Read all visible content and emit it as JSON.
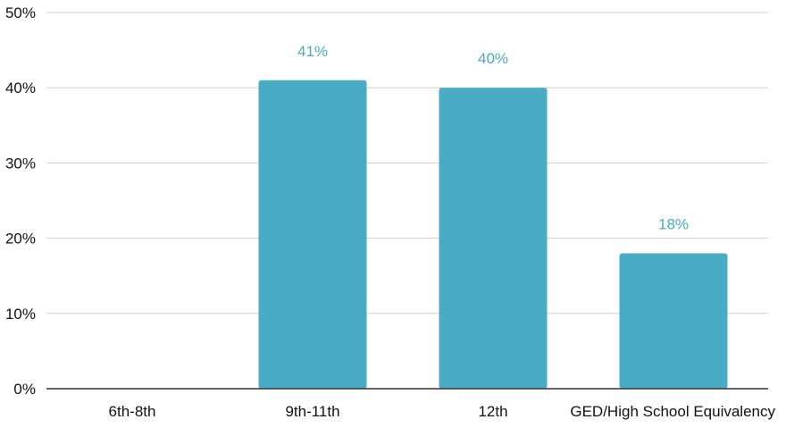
{
  "chart_data": {
    "type": "bar",
    "title": "",
    "xlabel": "",
    "ylabel": "",
    "categories": [
      "6th-8th",
      "9th-11th",
      "12th",
      "GED/High School Equivalency"
    ],
    "values": [
      0,
      41,
      40,
      18
    ],
    "data_labels": [
      "",
      "41%",
      "40%",
      "18%"
    ],
    "ylim": [
      0,
      50
    ],
    "yticks": [
      0,
      10,
      20,
      30,
      40,
      50
    ],
    "ytick_labels": [
      "0%",
      "10%",
      "20%",
      "30%",
      "40%",
      "50%"
    ],
    "grid": true,
    "legend": "none",
    "colors": {
      "bar": "#4aabc5",
      "data_label": "#4aabc5",
      "grid": "#cfcfcf",
      "axis": "#333333",
      "text": "#111111"
    }
  }
}
